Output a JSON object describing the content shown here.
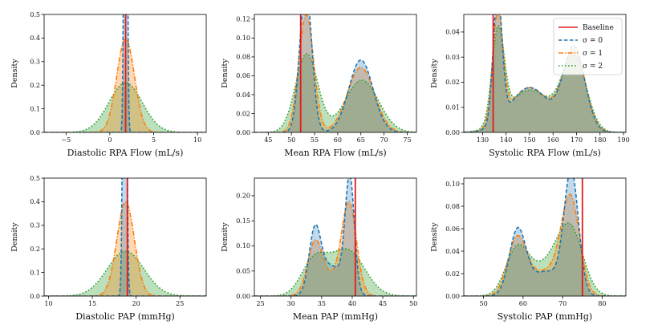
{
  "chart_data": [
    {
      "type": "kde",
      "xlabel": "Diastolic RPA Flow (mL/s)",
      "ylabel": "Density",
      "xlim": [
        -7.5,
        11
      ],
      "ylim": [
        0,
        0.5
      ],
      "xticks": [
        -5,
        0,
        5,
        10
      ],
      "yticks": [
        0.0,
        0.1,
        0.2,
        0.3,
        0.4,
        0.5
      ],
      "baseline": 1.8,
      "series": [
        {
          "name": "σ = 2",
          "components": [
            [
              1.8,
              1.9,
              1.0
            ]
          ]
        },
        {
          "name": "σ = 1",
          "components": [
            [
              1.8,
              1.0,
              1.0
            ]
          ]
        },
        {
          "name": "σ = 0",
          "components": [
            [
              1.8,
              0.15,
              1.0
            ]
          ]
        }
      ]
    },
    {
      "type": "kde",
      "xlabel": "Mean RPA Flow (mL/s)",
      "ylabel": "Density",
      "xlim": [
        42,
        77
      ],
      "ylim": [
        0,
        0.125
      ],
      "xticks": [
        45,
        50,
        55,
        60,
        65,
        70,
        75
      ],
      "yticks": [
        0.0,
        0.02,
        0.04,
        0.06,
        0.08,
        0.1,
        0.12
      ],
      "baseline": 52,
      "series": [
        {
          "name": "σ = 2",
          "components": [
            [
              53.3,
              2.4,
              0.5
            ],
            [
              65.2,
              3.6,
              0.5
            ]
          ]
        },
        {
          "name": "σ = 1",
          "components": [
            [
              53.2,
              1.6,
              0.5
            ],
            [
              65.0,
              2.9,
              0.5
            ]
          ]
        },
        {
          "name": "σ = 0",
          "components": [
            [
              53.1,
              1.3,
              0.5
            ],
            [
              65.0,
              2.6,
              0.5
            ]
          ]
        }
      ]
    },
    {
      "type": "kde",
      "xlabel": "Systolic RPA Flow (mL/s)",
      "ylabel": "Density",
      "xlim": [
        122,
        191
      ],
      "ylim": [
        0,
        0.047
      ],
      "xticks": [
        130,
        140,
        150,
        160,
        170,
        180,
        190
      ],
      "yticks": [
        0.0,
        0.01,
        0.02,
        0.03,
        0.04
      ],
      "baseline": 134.5,
      "legend": {
        "position": "top-right",
        "entries": [
          "Baseline",
          "σ = 0",
          "σ = 1",
          "σ = 2"
        ]
      },
      "series": [
        {
          "name": "σ = 2",
          "components": [
            [
              136.6,
              2.6,
              0.24
            ],
            [
              150,
              9,
              0.38
            ],
            [
              169.0,
              5.2,
              0.38
            ]
          ]
        },
        {
          "name": "σ = 1",
          "components": [
            [
              136.5,
              2.2,
              0.24
            ],
            [
              150,
              8.5,
              0.38
            ],
            [
              169.0,
              4.8,
              0.38
            ]
          ]
        },
        {
          "name": "σ = 0",
          "components": [
            [
              136.4,
              1.9,
              0.24
            ],
            [
              150,
              8.5,
              0.38
            ],
            [
              169.0,
              4.6,
              0.38
            ]
          ]
        }
      ]
    },
    {
      "type": "kde",
      "xlabel": "Diastolic PAP (mmHg)",
      "ylabel": "Density",
      "xlim": [
        9.5,
        28
      ],
      "ylim": [
        0,
        0.5
      ],
      "xticks": [
        10,
        15,
        20,
        25
      ],
      "yticks": [
        0.0,
        0.1,
        0.2,
        0.3,
        0.4,
        0.5
      ],
      "baseline": 19.0,
      "series": [
        {
          "name": "σ = 2",
          "components": [
            [
              18.8,
              2.1,
              1.0
            ]
          ]
        },
        {
          "name": "σ = 1",
          "components": [
            [
              18.8,
              1.0,
              1.0
            ]
          ]
        },
        {
          "name": "σ = 0",
          "components": [
            [
              18.7,
              0.18,
              1.0
            ]
          ]
        }
      ]
    },
    {
      "type": "kde",
      "xlabel": "Mean PAP (mmHg)",
      "ylabel": "Density",
      "xlim": [
        24,
        50.5
      ],
      "ylim": [
        0,
        0.235
      ],
      "xticks": [
        25,
        30,
        35,
        40,
        45,
        50
      ],
      "yticks": [
        0.0,
        0.05,
        0.1,
        0.15,
        0.2
      ],
      "baseline": 40.5,
      "series": [
        {
          "name": "σ = 2",
          "components": [
            [
              33.8,
              2.1,
              0.36
            ],
            [
              39.2,
              2.8,
              0.64
            ]
          ]
        },
        {
          "name": "σ = 1",
          "components": [
            [
              33.9,
              1.2,
              0.28
            ],
            [
              39.5,
              1.2,
              0.52
            ],
            [
              36.5,
              2.4,
              0.2
            ]
          ]
        },
        {
          "name": "σ = 0",
          "components": [
            [
              33.9,
              0.95,
              0.28
            ],
            [
              39.6,
              0.75,
              0.42
            ],
            [
              36.6,
              2.0,
              0.3
            ]
          ]
        }
      ]
    },
    {
      "type": "kde",
      "xlabel": "Systolic PAP (mmHg)",
      "ylabel": "Density",
      "xlim": [
        45,
        86
      ],
      "ylim": [
        0,
        0.105
      ],
      "xticks": [
        50,
        60,
        70,
        80
      ],
      "yticks": [
        0.0,
        0.02,
        0.04,
        0.06,
        0.08,
        0.1
      ],
      "baseline": 75,
      "series": [
        {
          "name": "σ = 2",
          "components": [
            [
              58.5,
              2.9,
              0.3
            ],
            [
              66,
              4,
              0.25
            ],
            [
              72,
              3.2,
              0.45
            ]
          ]
        },
        {
          "name": "σ = 1",
          "components": [
            [
              58.5,
              2.4,
              0.3
            ],
            [
              66,
              4,
              0.22
            ],
            [
              72,
              2.3,
              0.48
            ]
          ]
        },
        {
          "name": "σ = 0",
          "components": [
            [
              58.6,
              2.1,
              0.3
            ],
            [
              66,
              4,
              0.22
            ],
            [
              72.2,
              1.8,
              0.48
            ]
          ]
        }
      ]
    }
  ],
  "colors": {
    "baseline": "#e41a1c",
    "sigma0": "#1f77b4",
    "sigma1": "#ff7f0e",
    "sigma2": "#2ca02c"
  }
}
